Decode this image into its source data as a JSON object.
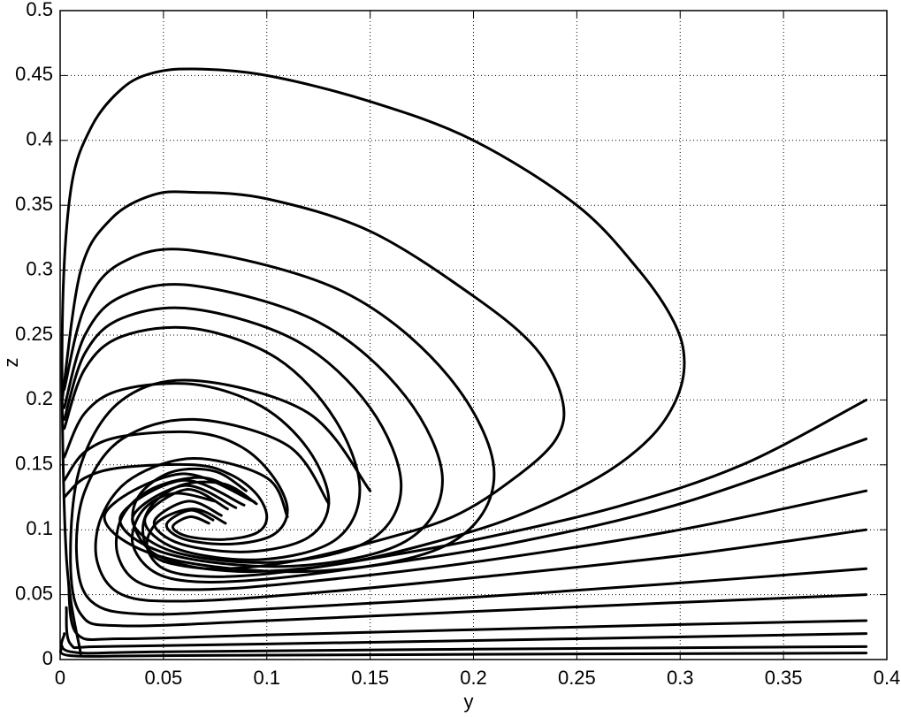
{
  "chart_data": {
    "type": "line",
    "xlabel": "y",
    "ylabel": "z",
    "color": "#000000",
    "grid": true,
    "xlim": [
      0,
      0.4
    ],
    "xticks": [
      0,
      0.05,
      0.1,
      0.15,
      0.2,
      0.25,
      0.3,
      0.35,
      0.4
    ],
    "ylim": [
      0,
      0.5
    ],
    "yticks": [
      0,
      0.05,
      0.1,
      0.15,
      0.2,
      0.25,
      0.3,
      0.35,
      0.4,
      0.45,
      0.5
    ],
    "series": [
      {
        "x": [
          0.01,
          0.003,
          0.001,
          0.005,
          0.015,
          0.03,
          0.045,
          0.065,
          0.1,
          0.15,
          0.2,
          0.25,
          0.28,
          0.297,
          0.302,
          0.298,
          0.285,
          0.26,
          0.22,
          0.18,
          0.14,
          0.1,
          0.07,
          0.05,
          0.04,
          0.035,
          0.04,
          0.055,
          0.075,
          0.09
        ],
        "values": [
          0.004,
          0.08,
          0.25,
          0.36,
          0.41,
          0.44,
          0.452,
          0.455,
          0.45,
          0.43,
          0.4,
          0.35,
          0.3,
          0.26,
          0.23,
          0.2,
          0.17,
          0.14,
          0.11,
          0.09,
          0.075,
          0.068,
          0.07,
          0.078,
          0.09,
          0.11,
          0.13,
          0.145,
          0.145,
          0.13
        ]
      },
      {
        "x": [
          0.001,
          0.01,
          0.025,
          0.045,
          0.065,
          0.1,
          0.15,
          0.2,
          0.23,
          0.243,
          0.24,
          0.22,
          0.19,
          0.15,
          0.11,
          0.08,
          0.06,
          0.045,
          0.04,
          0.045,
          0.06,
          0.08,
          0.095
        ],
        "values": [
          0.2,
          0.3,
          0.34,
          0.358,
          0.36,
          0.355,
          0.33,
          0.28,
          0.24,
          0.2,
          0.17,
          0.14,
          0.11,
          0.09,
          0.075,
          0.07,
          0.072,
          0.08,
          0.1,
          0.12,
          0.135,
          0.135,
          0.12
        ]
      },
      {
        "x": [
          0.002,
          0.012,
          0.03,
          0.065,
          0.1375,
          0.188,
          0.21,
          0.188,
          0.123,
          0.0505,
          0.0215,
          0.058,
          0.094
        ],
        "values": [
          0.208,
          0.272,
          0.306,
          0.315,
          0.283,
          0.218,
          0.143,
          0.089,
          0.068,
          0.0785,
          0.111,
          0.143,
          0.1215
        ]
      },
      {
        "x": [
          0.002,
          0.012,
          0.03,
          0.065,
          0.125,
          0.167,
          0.185,
          0.167,
          0.113,
          0.053,
          0.029,
          0.059,
          0.089
        ],
        "values": [
          0.194,
          0.25,
          0.28,
          0.288,
          0.26,
          0.203,
          0.138,
          0.091,
          0.072,
          0.081,
          0.109,
          0.138,
          0.119
        ]
      },
      {
        "x": [
          0.002,
          0.012,
          0.03,
          0.065,
          0.115,
          0.15,
          0.165,
          0.15,
          0.105,
          0.055,
          0.035,
          0.06,
          0.085
        ],
        "values": [
          0.185,
          0.236,
          0.263,
          0.27,
          0.245,
          0.194,
          0.134,
          0.092,
          0.075,
          0.083,
          0.109,
          0.134,
          0.117
        ]
      },
      {
        "x": [
          0.002,
          0.012,
          0.03,
          0.065,
          0.105,
          0.133,
          0.145,
          0.133,
          0.097,
          0.057,
          0.041,
          0.061,
          0.081
        ],
        "values": [
          0.178,
          0.224,
          0.249,
          0.255,
          0.232,
          0.185,
          0.131,
          0.092,
          0.077,
          0.085,
          0.108,
          0.131,
          0.116
        ]
      },
      {
        "x": [
          0.002,
          0.012,
          0.03,
          0.065,
          0.0975,
          0.12,
          0.13,
          0.12,
          0.091,
          0.0585,
          0.0455,
          0.062,
          0.078
        ],
        "values": [
          0.156,
          0.19,
          0.208,
          0.212,
          0.195,
          0.162,
          0.122,
          0.094,
          0.083,
          0.089,
          0.106,
          0.122,
          0.111
        ]
      },
      {
        "x": [
          0.002,
          0.012,
          0.03,
          0.065,
          0.0875,
          0.103,
          0.11,
          0.103,
          0.083,
          0.0605,
          0.0515,
          0.063,
          0.074
        ],
        "values": [
          0.138,
          0.16,
          0.172,
          0.175,
          0.164,
          0.141,
          0.115,
          0.096,
          0.089,
          0.0925,
          0.104,
          0.115,
          0.1075
        ]
      },
      {
        "x": [
          0.002,
          0.012,
          0.03,
          0.065,
          0.0825,
          0.095,
          0.1,
          0.095,
          0.079,
          0.0615,
          0.0545,
          0.063,
          0.072
        ],
        "values": [
          0.125,
          0.14,
          0.148,
          0.15,
          0.1425,
          0.1275,
          0.11,
          0.0975,
          0.0925,
          0.095,
          0.1025,
          0.11,
          0.105
        ]
      },
      {
        "x": [
          0.39,
          0.33,
          0.27,
          0.2,
          0.14,
          0.1,
          0.07,
          0.05,
          0.042,
          0.048,
          0.065,
          0.08
        ],
        "values": [
          0.2,
          0.15,
          0.118,
          0.092,
          0.075,
          0.066,
          0.064,
          0.07,
          0.088,
          0.107,
          0.116,
          0.105
        ]
      },
      {
        "x": [
          0.39,
          0.3,
          0.22,
          0.15,
          0.1,
          0.065,
          0.045,
          0.035,
          0.04,
          0.055,
          0.075
        ],
        "values": [
          0.17,
          0.12,
          0.09,
          0.072,
          0.062,
          0.06,
          0.068,
          0.09,
          0.115,
          0.128,
          0.122
        ]
      },
      {
        "x": [
          0.39,
          0.3,
          0.2,
          0.12,
          0.07,
          0.04,
          0.028,
          0.03,
          0.045,
          0.07,
          0.09
        ],
        "values": [
          0.13,
          0.1,
          0.075,
          0.06,
          0.054,
          0.058,
          0.08,
          0.11,
          0.132,
          0.14,
          0.125
        ]
      },
      {
        "x": [
          0.39,
          0.3,
          0.2,
          0.12,
          0.06,
          0.03,
          0.018,
          0.02,
          0.035,
          0.065,
          0.1,
          0.11
        ],
        "values": [
          0.1,
          0.08,
          0.063,
          0.051,
          0.045,
          0.05,
          0.075,
          0.11,
          0.14,
          0.155,
          0.14,
          0.11
        ]
      },
      {
        "x": [
          0.39,
          0.3,
          0.2,
          0.1,
          0.04,
          0.015,
          0.008,
          0.012,
          0.03,
          0.065,
          0.11,
          0.13
        ],
        "values": [
          0.07,
          0.059,
          0.048,
          0.039,
          0.035,
          0.045,
          0.08,
          0.13,
          0.17,
          0.185,
          0.165,
          0.12
        ]
      },
      {
        "x": [
          0.39,
          0.3,
          0.2,
          0.1,
          0.03,
          0.01,
          0.005,
          0.01,
          0.03,
          0.065,
          0.12,
          0.15
        ],
        "values": [
          0.05,
          0.044,
          0.037,
          0.03,
          0.026,
          0.035,
          0.08,
          0.15,
          0.2,
          0.215,
          0.19,
          0.13
        ]
      },
      {
        "x": [
          0.39,
          0.3,
          0.2,
          0.1,
          0.03,
          0.008,
          0.004
        ],
        "values": [
          0.03,
          0.027,
          0.023,
          0.019,
          0.016,
          0.02,
          0.06
        ]
      },
      {
        "x": [
          0.39,
          0.25,
          0.1,
          0.02,
          0.005,
          0.003
        ],
        "values": [
          0.02,
          0.016,
          0.012,
          0.01,
          0.012,
          0.04
        ]
      },
      {
        "x": [
          0.39,
          0.2,
          0.05,
          0.005,
          0.002
        ],
        "values": [
          0.01,
          0.008,
          0.006,
          0.006,
          0.02
        ]
      },
      {
        "x": [
          0.39,
          0.2,
          0.05,
          0.005,
          0.001
        ],
        "values": [
          0.005,
          0.004,
          0.003,
          0.003,
          0.01
        ]
      }
    ]
  }
}
